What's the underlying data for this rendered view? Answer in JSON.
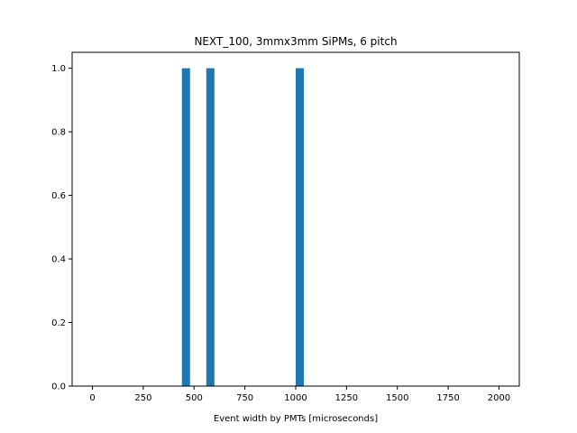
{
  "chart_data": {
    "type": "bar",
    "title": "NEXT_100, 3mmx3mm SiPMs, 6 pitch",
    "xlabel": "Event width by PMTs [microseconds]",
    "ylabel": "",
    "xlim": [
      -100,
      2100
    ],
    "ylim": [
      0,
      1.05
    ],
    "xticks": [
      0,
      250,
      500,
      750,
      1000,
      1250,
      1500,
      1750,
      2000
    ],
    "xtick_labels": [
      "0",
      "250",
      "500",
      "750",
      "1000",
      "1250",
      "1500",
      "1750",
      "2000"
    ],
    "yticks": [
      0.0,
      0.2,
      0.4,
      0.6,
      0.8,
      1.0
    ],
    "ytick_labels": [
      "0.0",
      "0.2",
      "0.4",
      "0.6",
      "0.8",
      "1.0"
    ],
    "bin_width": 40,
    "bars": [
      {
        "x_start": 440,
        "x_end": 480,
        "value": 1
      },
      {
        "x_start": 560,
        "x_end": 600,
        "value": 1
      },
      {
        "x_start": 1000,
        "x_end": 1040,
        "value": 1
      }
    ],
    "bar_color": "#1f77b4",
    "grid": false,
    "legend": false
  }
}
